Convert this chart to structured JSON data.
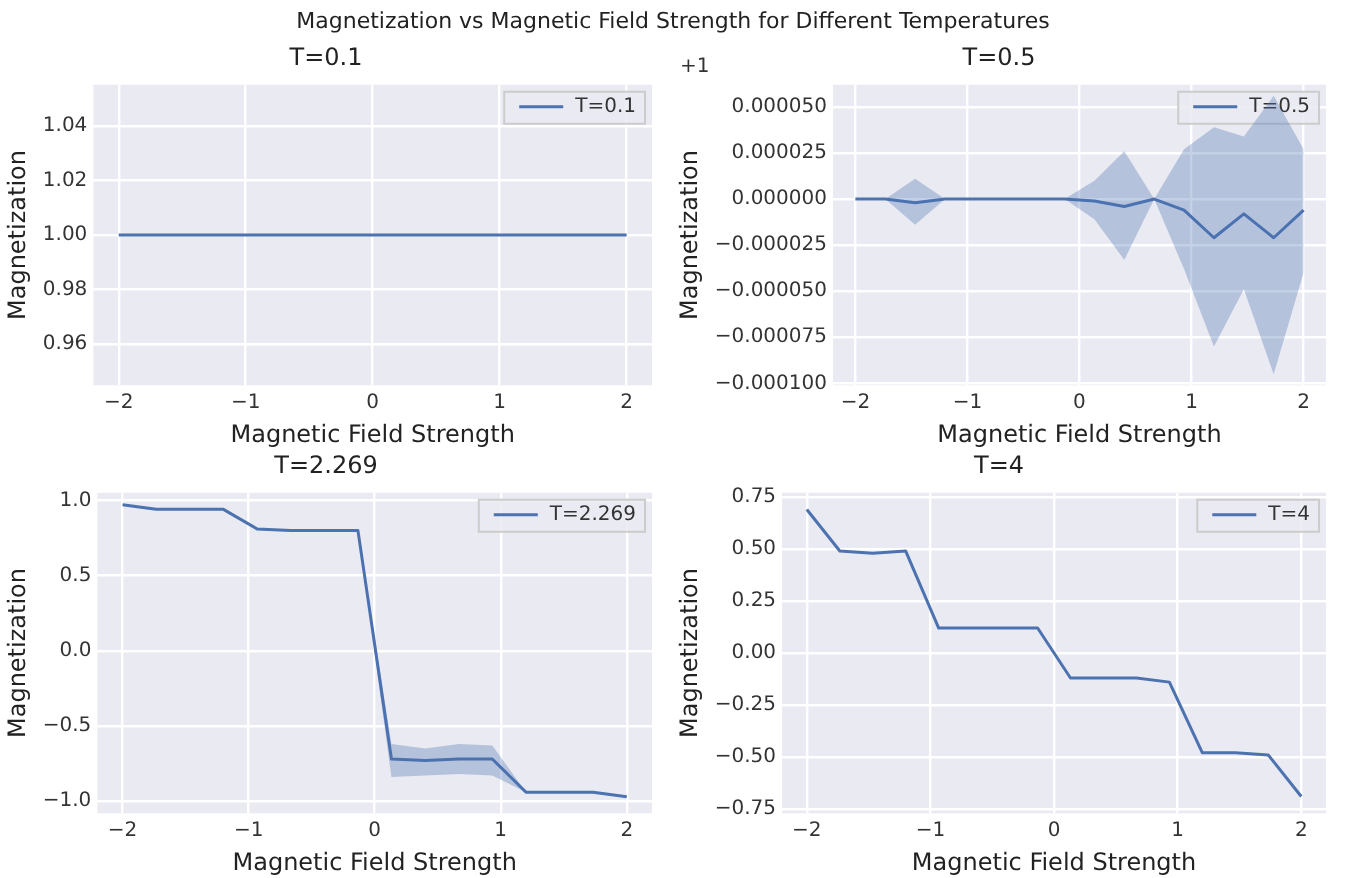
{
  "chart_data": [
    {
      "type": "other",
      "title": "Magnetization vs Magnetic Field Strength for Different Temperatures"
    },
    {
      "type": "line",
      "title": "T=0.1",
      "xlabel": "Magnetic Field Strength",
      "ylabel": "Magnetization",
      "legend": "top right",
      "grid": true,
      "xlim": [
        -2.2,
        2.2
      ],
      "xticks": [
        -2,
        -1,
        0,
        1,
        2
      ],
      "ylim": [
        0.945,
        1.055
      ],
      "yticks": [
        0.96,
        0.98,
        {
          "value": 1,
          "label": "1.00"
        },
        1.02,
        1.04
      ],
      "x": [
        -2,
        -1.733,
        -1.467,
        -1.2,
        -0.933,
        -0.667,
        -0.4,
        -0.133,
        0.133,
        0.4,
        0.667,
        0.933,
        1.2,
        1.467,
        1.733,
        2
      ],
      "series": [
        {
          "name": "T=0.1",
          "color": "#4c72b0",
          "values": [
            1,
            1,
            1,
            1,
            1,
            1,
            1,
            1,
            1,
            1,
            1,
            1,
            1,
            1,
            1,
            1
          ]
        }
      ]
    },
    {
      "type": "line",
      "title": "T=0.5",
      "xlabel": "Magnetic Field Strength",
      "ylabel": "Magnetization",
      "legend": "top right",
      "grid": true,
      "annotations": [
        "+1"
      ],
      "xlim": [
        -2.2,
        2.2
      ],
      "xticks": [
        -2,
        -1,
        0,
        1,
        2
      ],
      "ylim": [
        -0.000101,
        6.2e-05
      ],
      "yticks": [
        {
          "value": -0.0001,
          "label": "−0.000100"
        },
        {
          "value": -7.5e-05,
          "label": "−0.000075"
        },
        {
          "value": -5e-05,
          "label": "−0.000050"
        },
        {
          "value": -2.5e-05,
          "label": "−0.000025"
        },
        {
          "value": 0,
          "label": "0.000000"
        },
        {
          "value": 2.5e-05,
          "label": "0.000025"
        },
        {
          "value": 5e-05,
          "label": "0.000050"
        }
      ],
      "x": [
        -2,
        -1.733,
        -1.467,
        -1.2,
        -0.933,
        -0.667,
        -0.4,
        -0.133,
        0.133,
        0.4,
        0.667,
        0.933,
        1.2,
        1.467,
        1.733,
        2
      ],
      "series": [
        {
          "name": "T=0.5",
          "color": "#4c72b0",
          "values": [
            0,
            0,
            -2e-06,
            0,
            0,
            0,
            0,
            0,
            -1e-06,
            -4e-06,
            0,
            -6e-06,
            -2.1e-05,
            -8e-06,
            -2.1e-05,
            -6e-06
          ],
          "lower": [
            0,
            0,
            -1.4e-05,
            0,
            0,
            0,
            0,
            0,
            -1.1e-05,
            -3.3e-05,
            0,
            -3.8e-05,
            -8e-05,
            -4.9e-05,
            -9.5e-05,
            -4e-05
          ],
          "upper": [
            0,
            0,
            1.1e-05,
            0,
            0,
            0,
            0,
            0,
            1e-05,
            2.6e-05,
            0,
            2.7e-05,
            3.9e-05,
            3.4e-05,
            5.6e-05,
            2.7e-05
          ]
        }
      ]
    },
    {
      "type": "line",
      "title": "T=2.269",
      "xlabel": "Magnetic Field Strength",
      "ylabel": "Magnetization",
      "legend": "top right",
      "grid": true,
      "xlim": [
        -2.2,
        2.2
      ],
      "xticks": [
        -2,
        -1,
        0,
        1,
        2
      ],
      "ylim": [
        -1.08,
        1.05
      ],
      "yticks": [
        {
          "value": -1,
          "label": "−1.0"
        },
        -0.5,
        {
          "value": 0,
          "label": "0.0"
        },
        0.5,
        {
          "value": 1,
          "label": "1.0"
        }
      ],
      "x": [
        -2,
        -1.733,
        -1.467,
        -1.2,
        -0.933,
        -0.667,
        -0.4,
        -0.133,
        0.133,
        0.4,
        0.667,
        0.933,
        1.2,
        1.467,
        1.733,
        2
      ],
      "series": [
        {
          "name": "T=2.269",
          "color": "#4c72b0",
          "values": [
            0.97,
            0.94,
            0.94,
            0.94,
            0.81,
            0.8,
            0.8,
            0.8,
            -0.72,
            -0.73,
            -0.72,
            -0.72,
            -0.94,
            -0.94,
            -0.94,
            -0.97
          ],
          "lower": [
            0.97,
            0.94,
            0.94,
            0.94,
            0.81,
            0.8,
            0.8,
            0.8,
            -0.84,
            -0.83,
            -0.82,
            -0.83,
            -0.94,
            -0.94,
            -0.94,
            -0.97
          ],
          "upper": [
            0.97,
            0.94,
            0.94,
            0.94,
            0.81,
            0.8,
            0.8,
            0.8,
            -0.62,
            -0.65,
            -0.62,
            -0.63,
            -0.94,
            -0.94,
            -0.94,
            -0.97
          ]
        }
      ]
    },
    {
      "type": "line",
      "title": "T=4",
      "xlabel": "Magnetic Field Strength",
      "ylabel": "Magnetization",
      "legend": "top right",
      "grid": true,
      "xlim": [
        -2.2,
        2.2
      ],
      "xticks": [
        -2,
        -1,
        0,
        1,
        2
      ],
      "ylim": [
        -0.77,
        0.77
      ],
      "yticks": [
        -0.75,
        {
          "value": -0.5,
          "label": "−0.50"
        },
        -0.25,
        {
          "value": 0,
          "label": "0.00"
        },
        0.25,
        {
          "value": 0.5,
          "label": "0.50"
        },
        0.75
      ],
      "x": [
        -2,
        -1.733,
        -1.467,
        -1.2,
        -0.933,
        -0.667,
        -0.4,
        -0.133,
        0.133,
        0.4,
        0.667,
        0.933,
        1.2,
        1.467,
        1.733,
        2
      ],
      "series": [
        {
          "name": "T=4",
          "color": "#4c72b0",
          "values": [
            0.69,
            0.49,
            0.48,
            0.49,
            0.12,
            0.12,
            0.12,
            0.12,
            -0.12,
            -0.12,
            -0.12,
            -0.14,
            -0.48,
            -0.48,
            -0.49,
            -0.69
          ]
        }
      ]
    }
  ]
}
